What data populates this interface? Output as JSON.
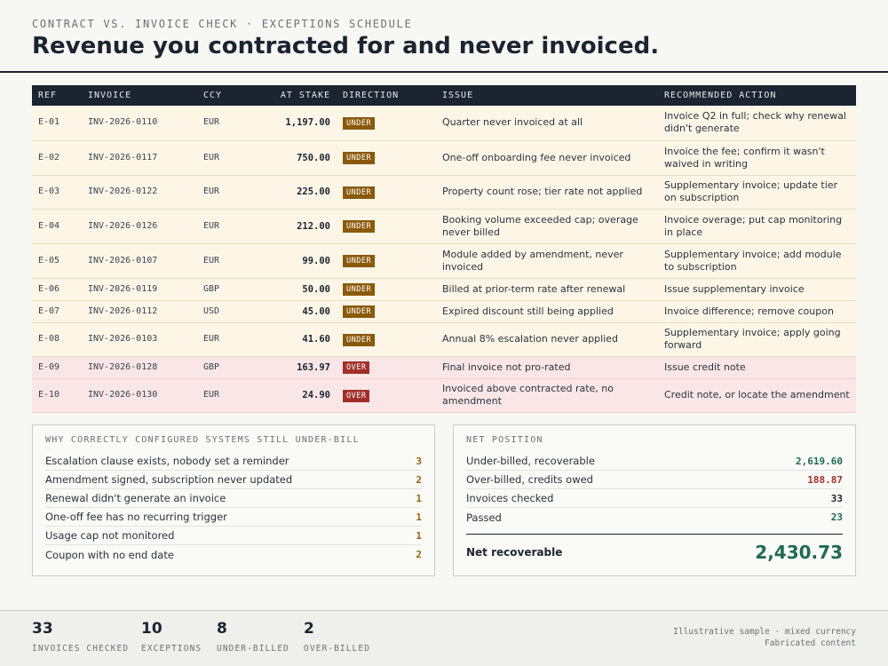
{
  "header": {
    "eyebrow": "CONTRACT VS. INVOICE CHECK · EXCEPTIONS SCHEDULE",
    "title": "Revenue you contracted for and never invoiced."
  },
  "table": {
    "columns": [
      "REF",
      "INVOICE",
      "CCY",
      "AT STAKE",
      "DIRECTION",
      "ISSUE",
      "RECOMMENDED ACTION"
    ],
    "rows": [
      {
        "ref": "E-01",
        "invoice": "INV-2026-0110",
        "ccy": "EUR",
        "amount": "1,197.00",
        "direction": "UNDER",
        "issue": "Quarter never invoiced at all",
        "action": "Invoice Q2 in full; check why renewal didn't generate"
      },
      {
        "ref": "E-02",
        "invoice": "INV-2026-0117",
        "ccy": "EUR",
        "amount": "750.00",
        "direction": "UNDER",
        "issue": "One-off onboarding fee never invoiced",
        "action": "Invoice the fee; confirm it wasn't waived in writing"
      },
      {
        "ref": "E-03",
        "invoice": "INV-2026-0122",
        "ccy": "EUR",
        "amount": "225.00",
        "direction": "UNDER",
        "issue": "Property count rose; tier rate not applied",
        "action": "Supplementary invoice; update tier on subscription"
      },
      {
        "ref": "E-04",
        "invoice": "INV-2026-0126",
        "ccy": "EUR",
        "amount": "212.00",
        "direction": "UNDER",
        "issue": "Booking volume exceeded cap; overage never billed",
        "action": "Invoice overage; put cap monitoring in place"
      },
      {
        "ref": "E-05",
        "invoice": "INV-2026-0107",
        "ccy": "EUR",
        "amount": "99.00",
        "direction": "UNDER",
        "issue": "Module added by amendment, never invoiced",
        "action": "Supplementary invoice; add module to subscription"
      },
      {
        "ref": "E-06",
        "invoice": "INV-2026-0119",
        "ccy": "GBP",
        "amount": "50.00",
        "direction": "UNDER",
        "issue": "Billed at prior-term rate after renewal",
        "action": "Issue supplementary invoice"
      },
      {
        "ref": "E-07",
        "invoice": "INV-2026-0112",
        "ccy": "USD",
        "amount": "45.00",
        "direction": "UNDER",
        "issue": "Expired discount still being applied",
        "action": "Invoice difference; remove coupon"
      },
      {
        "ref": "E-08",
        "invoice": "INV-2026-0103",
        "ccy": "EUR",
        "amount": "41.60",
        "direction": "UNDER",
        "issue": "Annual 8% escalation never applied",
        "action": "Supplementary invoice; apply going forward"
      },
      {
        "ref": "E-09",
        "invoice": "INV-2026-0128",
        "ccy": "GBP",
        "amount": "163.97",
        "direction": "OVER",
        "issue": "Final invoice not pro-rated",
        "action": "Issue credit note"
      },
      {
        "ref": "E-10",
        "invoice": "INV-2026-0130",
        "ccy": "EUR",
        "amount": "24.90",
        "direction": "OVER",
        "issue": "Invoiced above contracted rate, no amendment",
        "action": "Credit note, or locate the amendment"
      }
    ]
  },
  "why_panel": {
    "title": "WHY CORRECTLY CONFIGURED SYSTEMS STILL UNDER-BILL",
    "items": [
      {
        "label": "Escalation clause exists, nobody set a reminder",
        "count": "3"
      },
      {
        "label": "Amendment signed, subscription never updated",
        "count": "2"
      },
      {
        "label": "Renewal didn't generate an invoice",
        "count": "1"
      },
      {
        "label": "One-off fee has no recurring trigger",
        "count": "1"
      },
      {
        "label": "Usage cap not monitored",
        "count": "1"
      },
      {
        "label": "Coupon with no end date",
        "count": "2"
      }
    ]
  },
  "net_panel": {
    "title": "NET POSITION",
    "rows": [
      {
        "label": "Under-billed, recoverable",
        "value": "2,619.60",
        "tone": "green"
      },
      {
        "label": "Over-billed, credits owed",
        "value": "188.87",
        "tone": "red"
      },
      {
        "label": "Invoices checked",
        "value": "33",
        "tone": "dark"
      },
      {
        "label": "Passed",
        "value": "23",
        "tone": "green"
      }
    ],
    "net_label": "Net recoverable",
    "net_value": "2,430.73"
  },
  "footer": {
    "stats": [
      {
        "num": "33",
        "label": "INVOICES CHECKED"
      },
      {
        "num": "10",
        "label": "EXCEPTIONS"
      },
      {
        "num": "8",
        "label": "UNDER-BILLED"
      },
      {
        "num": "2",
        "label": "OVER-BILLED"
      }
    ],
    "note_line1": "Illustrative sample · mixed currency",
    "note_line2": "Fabricated content"
  },
  "colors": {
    "under_badge": "#8a5a0a",
    "over_badge": "#a2302a",
    "under_row": "#fdf6e7",
    "over_row": "#fae6e6",
    "positive": "#1f6b50",
    "header_dark": "#1b2430"
  }
}
